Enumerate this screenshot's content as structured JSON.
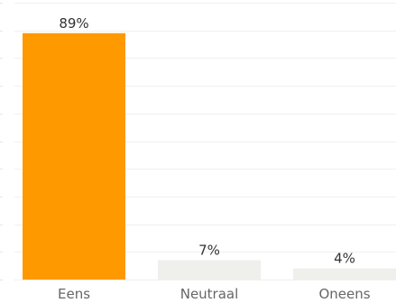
{
  "chart_data": {
    "type": "bar",
    "categories": [
      "Eens",
      "Neutraal",
      "Oneens"
    ],
    "values": [
      89,
      7,
      4
    ],
    "value_labels": [
      "89%",
      "7%",
      "4%"
    ],
    "value_unit": "%",
    "ylim": [
      0,
      100
    ],
    "grid": true,
    "legend": "none",
    "colors": {
      "highlight": "#ff9900",
      "default": "#efefec",
      "gridline": "#f0f0ee"
    },
    "highlight_index": 0
  }
}
